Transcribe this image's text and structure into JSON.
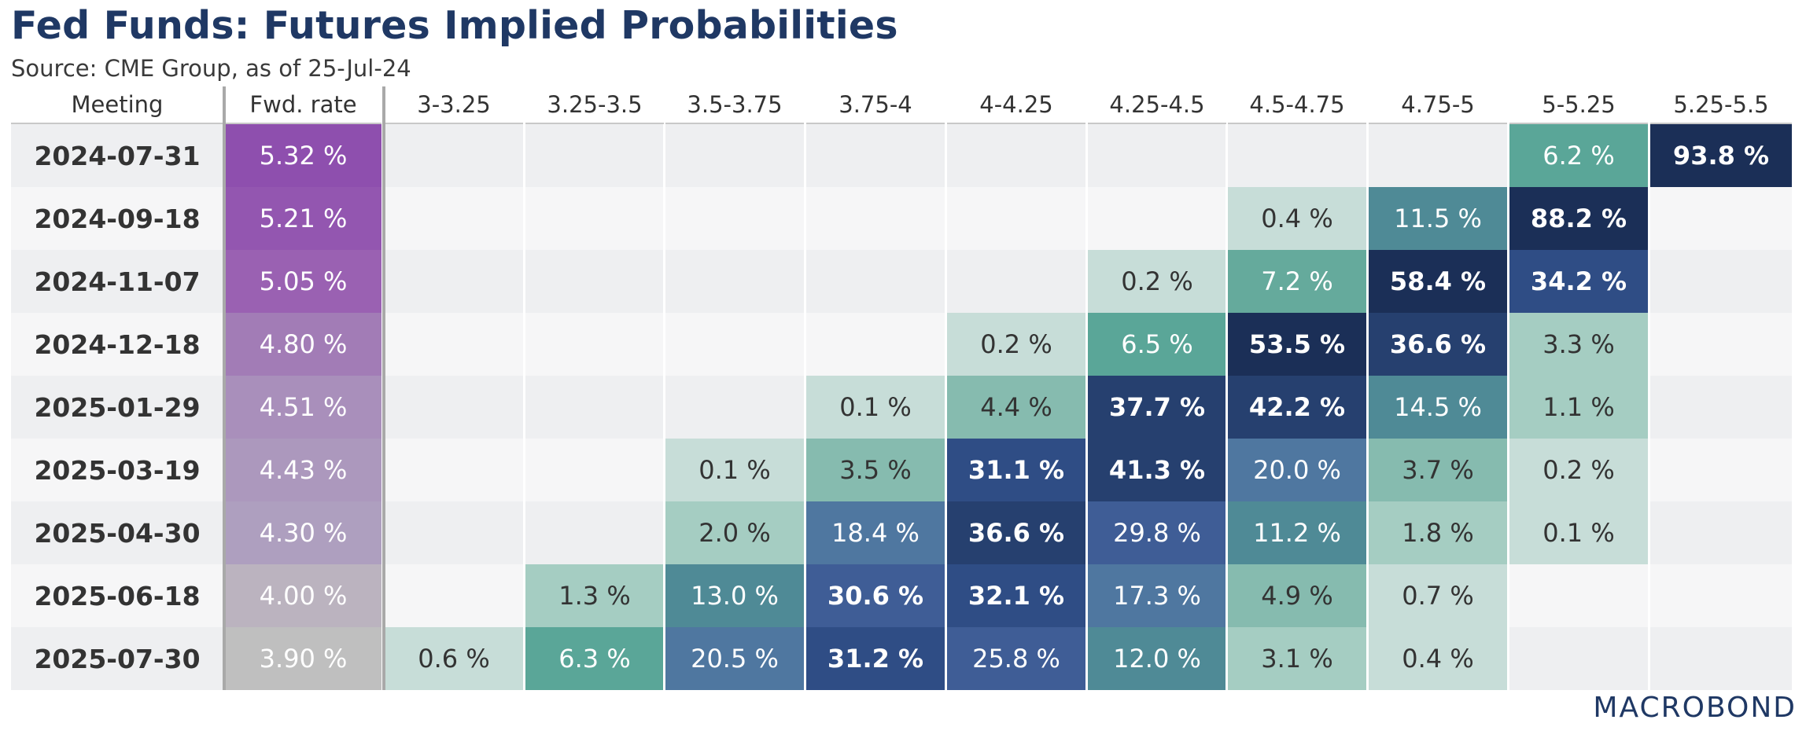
{
  "header": {
    "title": "Fed Funds: Futures Implied Probabilities",
    "subtitle": "Source: CME Group, as of 25-Jul-24"
  },
  "logo": "MACROBOND",
  "chart_data": {
    "type": "table",
    "columns": [
      "Meeting",
      "Fwd. rate",
      "3-3.25",
      "3.25-3.5",
      "3.5-3.75",
      "3.75-4",
      "4-4.25",
      "4.25-4.5",
      "4.5-4.75",
      "4.75-5",
      "5-5.25",
      "5.25-5.5"
    ],
    "rows": [
      {
        "meeting": "2024-07-31",
        "fwd_rate": "5.32 %",
        "probs": [
          "",
          "",
          "",
          "",
          "",
          "",
          "",
          "",
          "6.2 %",
          "93.8 %"
        ]
      },
      {
        "meeting": "2024-09-18",
        "fwd_rate": "5.21 %",
        "probs": [
          "",
          "",
          "",
          "",
          "",
          "",
          "0.4 %",
          "11.5 %",
          "88.2 %",
          ""
        ]
      },
      {
        "meeting": "2024-11-07",
        "fwd_rate": "5.05 %",
        "probs": [
          "",
          "",
          "",
          "",
          "",
          "0.2 %",
          "7.2 %",
          "58.4 %",
          "34.2 %",
          ""
        ]
      },
      {
        "meeting": "2024-12-18",
        "fwd_rate": "4.80 %",
        "probs": [
          "",
          "",
          "",
          "",
          "0.2 %",
          "6.5 %",
          "53.5 %",
          "36.6 %",
          "3.3 %",
          ""
        ]
      },
      {
        "meeting": "2025-01-29",
        "fwd_rate": "4.51 %",
        "probs": [
          "",
          "",
          "",
          "0.1 %",
          "4.4 %",
          "37.7 %",
          "42.2 %",
          "14.5 %",
          "1.1 %",
          ""
        ]
      },
      {
        "meeting": "2025-03-19",
        "fwd_rate": "4.43 %",
        "probs": [
          "",
          "",
          "0.1 %",
          "3.5 %",
          "31.1 %",
          "41.3 %",
          "20.0 %",
          "3.7 %",
          "0.2 %",
          ""
        ]
      },
      {
        "meeting": "2025-04-30",
        "fwd_rate": "4.30 %",
        "probs": [
          "",
          "",
          "2.0 %",
          "18.4 %",
          "36.6 %",
          "29.8 %",
          "11.2 %",
          "1.8 %",
          "0.1 %",
          ""
        ]
      },
      {
        "meeting": "2025-06-18",
        "fwd_rate": "4.00 %",
        "probs": [
          "",
          "1.3 %",
          "13.0 %",
          "30.6 %",
          "32.1 %",
          "17.3 %",
          "4.9 %",
          "0.7 %",
          "",
          ""
        ]
      },
      {
        "meeting": "2025-07-30",
        "fwd_rate": "3.90 %",
        "probs": [
          "0.6 %",
          "6.3 %",
          "20.5 %",
          "31.2 %",
          "25.8 %",
          "12.0 %",
          "3.1 %",
          "0.4 %",
          "",
          ""
        ]
      }
    ],
    "fwd_rate_colors": [
      "#8e4fae",
      "#9356b0",
      "#9a61b2",
      "#a27cb6",
      "#a98fbb",
      "#ac98bd",
      "#ae9fbf",
      "#bbb3bf",
      "#bfbfbf"
    ],
    "bold_threshold": 30,
    "color_scale": [
      {
        "max": 1,
        "color": "#c7ddd8",
        "text": "#333333"
      },
      {
        "max": 3.5,
        "color": "#a5cdc2",
        "text": "#333333"
      },
      {
        "max": 5,
        "color": "#86bbaf",
        "text": "#333333"
      },
      {
        "max": 7,
        "color": "#5aa698",
        "text": "#ffffff"
      },
      {
        "max": 9,
        "color": "#65aa9c",
        "text": "#ffffff"
      },
      {
        "max": 15,
        "color": "#4f8a96",
        "text": "#ffffff"
      },
      {
        "max": 22,
        "color": "#4f77a0",
        "text": "#ffffff"
      },
      {
        "max": 31,
        "color": "#3f5d96",
        "text": "#ffffff"
      },
      {
        "max": 35,
        "color": "#2f4d85",
        "text": "#ffffff"
      },
      {
        "max": 50,
        "color": "#26406f",
        "text": "#ffffff"
      },
      {
        "max": 101,
        "color": "#1b2f57",
        "text": "#ffffff"
      }
    ],
    "empty_colors": [
      "#eeeff1",
      "#f6f6f7"
    ]
  }
}
